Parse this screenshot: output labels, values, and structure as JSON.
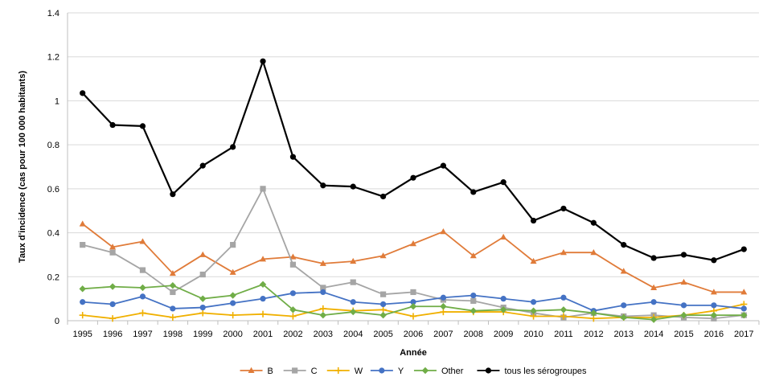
{
  "chart_data": {
    "type": "line",
    "title": "",
    "xlabel": "Année",
    "ylabel": "Taux d'incidence (cas pour 100 000 habitants)",
    "ylim": [
      0,
      1.4
    ],
    "yticks": [
      "0",
      "0.2",
      "0.4",
      "0.6",
      "0.8",
      "1",
      "1.2",
      "1.4"
    ],
    "grid": true,
    "legend_position": "bottom",
    "categories": [
      "1995",
      "1996",
      "1997",
      "1998",
      "1999",
      "2000",
      "2001",
      "2002",
      "2003",
      "2004",
      "2005",
      "2006",
      "2007",
      "2008",
      "2009",
      "2010",
      "2011",
      "2012",
      "2013",
      "2014",
      "2015",
      "2016",
      "2017"
    ],
    "series": [
      {
        "name": "B",
        "color": "#e07b39",
        "marker": "triangle",
        "values": [
          0.44,
          0.335,
          0.36,
          0.215,
          0.3,
          0.22,
          0.28,
          0.29,
          0.26,
          0.27,
          0.295,
          0.35,
          0.405,
          0.295,
          0.38,
          0.27,
          0.31,
          0.31,
          0.225,
          0.15,
          0.175,
          0.13,
          0.13
        ]
      },
      {
        "name": "C",
        "color": "#a5a5a5",
        "marker": "square",
        "values": [
          0.345,
          0.31,
          0.23,
          0.13,
          0.21,
          0.345,
          0.6,
          0.255,
          0.15,
          0.175,
          0.12,
          0.13,
          0.095,
          0.09,
          0.06,
          0.035,
          0.015,
          0.035,
          0.02,
          0.025,
          0.015,
          0.01,
          0.025
        ]
      },
      {
        "name": "W",
        "color": "#f0b000",
        "marker": "plus",
        "values": [
          0.025,
          0.01,
          0.035,
          0.015,
          0.035,
          0.025,
          0.03,
          0.02,
          0.055,
          0.045,
          0.05,
          0.02,
          0.04,
          0.04,
          0.04,
          0.02,
          0.02,
          0.01,
          0.015,
          0.015,
          0.025,
          0.045,
          0.075
        ]
      },
      {
        "name": "Y",
        "color": "#4472c4",
        "marker": "circle",
        "values": [
          0.085,
          0.075,
          0.11,
          0.055,
          0.06,
          0.08,
          0.1,
          0.125,
          0.13,
          0.085,
          0.075,
          0.085,
          0.105,
          0.115,
          0.1,
          0.085,
          0.105,
          0.045,
          0.07,
          0.085,
          0.07,
          0.07,
          0.055
        ]
      },
      {
        "name": "Other",
        "color": "#70ad47",
        "marker": "diamond",
        "values": [
          0.145,
          0.155,
          0.15,
          0.16,
          0.1,
          0.115,
          0.165,
          0.05,
          0.025,
          0.04,
          0.025,
          0.065,
          0.065,
          0.045,
          0.05,
          0.045,
          0.05,
          0.035,
          0.015,
          0.005,
          0.025,
          0.025,
          0.025
        ]
      },
      {
        "name": "tous les sérogroupes",
        "color": "#000000",
        "marker": "circle",
        "values": [
          1.035,
          0.89,
          0.885,
          0.575,
          0.705,
          0.79,
          1.18,
          0.745,
          0.615,
          0.61,
          0.565,
          0.65,
          0.705,
          0.585,
          0.63,
          0.455,
          0.51,
          0.445,
          0.345,
          0.285,
          0.3,
          0.275,
          0.325
        ]
      }
    ]
  }
}
